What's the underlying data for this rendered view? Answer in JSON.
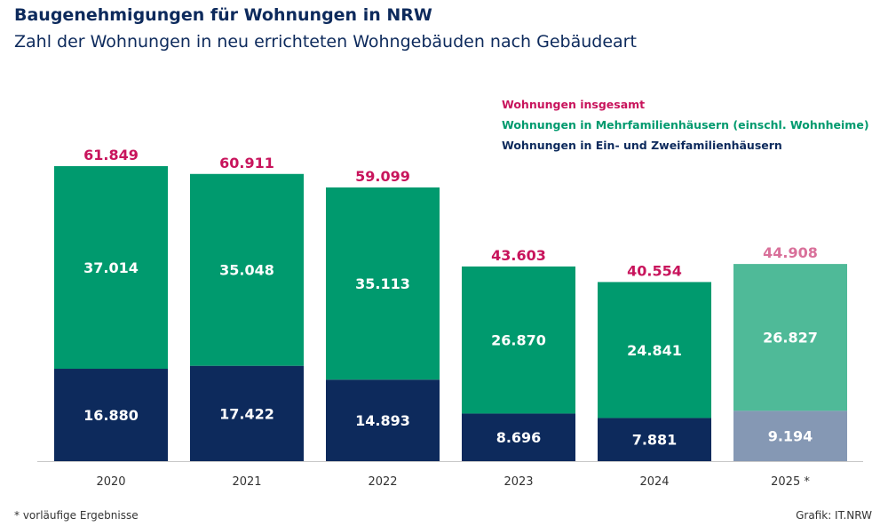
{
  "chart_data": {
    "type": "bar",
    "stacked": true,
    "title": "Baugenehmigungen für Wohnungen in NRW",
    "subtitle": "Zahl der Wohnungen in neu errichteten Wohngebäuden nach Gebäudeart",
    "categories": [
      "2020",
      "2021",
      "2022",
      "2023",
      "2024",
      "2025 *"
    ],
    "totals": {
      "name": "Wohnungen insgesamt",
      "values": [
        61849,
        60911,
        59099,
        43603,
        40554,
        44908
      ],
      "labels": [
        "61.849",
        "60.911",
        "59.099",
        "43.603",
        "40.554",
        "44.908"
      ],
      "color": "#c8145c",
      "color_preliminary": "#d9709a"
    },
    "series": [
      {
        "name": "Wohnungen in Ein- und Zweifamilienhäusern",
        "values": [
          16880,
          17422,
          14893,
          8696,
          7881,
          9194
        ],
        "labels": [
          "16.880",
          "17.422",
          "14.893",
          "8.696",
          "7.881",
          "9.194"
        ],
        "color": "#0d2a5c",
        "color_preliminary": "#8598b4"
      },
      {
        "name": "Wohnungen in Mehrfamilienhäusern (einschl. Wohnheime)",
        "values": [
          37014,
          35048,
          35113,
          26870,
          24841,
          26827
        ],
        "labels": [
          "37.014",
          "35.048",
          "35.113",
          "26.870",
          "24.841",
          "26.827"
        ],
        "color": "#009a6e",
        "color_preliminary": "#4fba98"
      }
    ],
    "preliminary_index": 5,
    "legend_position": "top-right",
    "grid": false,
    "footnote": "* vorläufige Ergebnisse",
    "credit": "Grafik: IT.NRW"
  }
}
